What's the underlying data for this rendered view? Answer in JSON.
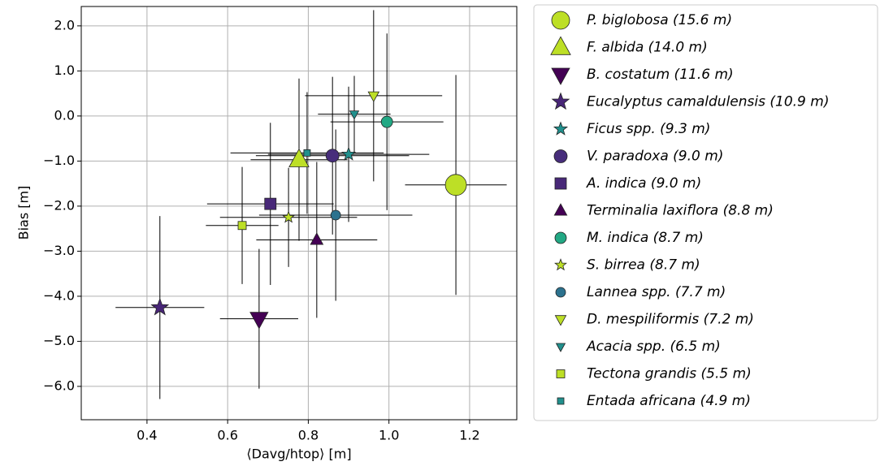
{
  "chart_data": {
    "type": "scatter",
    "xlabel": "⟨Davg/htop⟩ [m]",
    "ylabel": "Bias [m]",
    "xlim": [
      0.237,
      1.317
    ],
    "ylim": [
      -6.74,
      2.43
    ],
    "xticks": [
      0.4,
      0.6,
      0.8,
      {
        "value": 1,
        "label": "1.0"
      },
      1.2
    ],
    "yticks": [
      {
        "value": 2,
        "label": "2.0"
      },
      {
        "value": 1,
        "label": "1.0"
      },
      {
        "value": 0,
        "label": "0.0"
      },
      {
        "value": -1,
        "label": "−1.0"
      },
      {
        "value": -2,
        "label": "−2.0"
      },
      {
        "value": -3,
        "label": "−3.0"
      },
      {
        "value": -4,
        "label": "−4.0"
      },
      {
        "value": -5,
        "label": "−5.0"
      },
      {
        "value": -6,
        "label": "−6.0"
      }
    ],
    "grid": true,
    "legend": "outside right",
    "series": [
      {
        "name": "P. biglobosa (15.6 m)",
        "color": "#bddf26",
        "marker": "circle",
        "x": 1.166,
        "y": -1.53,
        "xerr": 0.126,
        "yerr": 2.44
      },
      {
        "name": "F. albida (14.0 m)",
        "color": "#bddf26",
        "marker": "triangle-up",
        "x": 0.777,
        "y": -0.97,
        "xerr": 0.12,
        "yerr": 1.8
      },
      {
        "name": "B. costatum (11.6 m)",
        "color": "#440154",
        "marker": "triangle-down",
        "x": 0.678,
        "y": -4.5,
        "xerr": 0.097,
        "yerr": 1.55
      },
      {
        "name": "Eucalyptus camaldulensis (10.9 m)",
        "color": "#482677",
        "marker": "star",
        "x": 0.432,
        "y": -4.25,
        "xerr": 0.11,
        "yerr": 2.03
      },
      {
        "name": "Ficus spp. (9.3 m)",
        "color": "#21908d",
        "marker": "star",
        "x": 0.9,
        "y": -0.85,
        "xerr": 0.2,
        "yerr": 1.5
      },
      {
        "name": "V. paradoxa (9.0 m)",
        "color": "#472d7b",
        "marker": "circle",
        "x": 0.86,
        "y": -0.88,
        "xerr": 0.19,
        "yerr": 1.75
      },
      {
        "name": "A. indica (9.0 m)",
        "color": "#482878",
        "marker": "square",
        "x": 0.706,
        "y": -1.95,
        "xerr": 0.157,
        "yerr": 1.8
      },
      {
        "name": "Terminalia laxiflora (8.8 m)",
        "color": "#440154",
        "marker": "triangle-up",
        "x": 0.821,
        "y": -2.75,
        "xerr": 0.15,
        "yerr": 1.73
      },
      {
        "name": "M. indica (8.7 m)",
        "color": "#22a884",
        "marker": "circle",
        "x": 0.995,
        "y": -0.13,
        "xerr": 0.14,
        "yerr": 1.96
      },
      {
        "name": "S. birrea (8.7 m)",
        "color": "#bddf26",
        "marker": "star",
        "x": 0.751,
        "y": -2.25,
        "xerr": 0.17,
        "yerr": 1.1
      },
      {
        "name": "Lannea spp. (7.7 m)",
        "color": "#2c728e",
        "marker": "circle",
        "x": 0.868,
        "y": -2.2,
        "xerr": 0.19,
        "yerr": 1.9
      },
      {
        "name": "D. mespiliformis (7.2 m)",
        "color": "#bddf26",
        "marker": "triangle-down",
        "x": 0.962,
        "y": 0.45,
        "xerr": 0.17,
        "yerr": 1.9
      },
      {
        "name": "Acacia spp. (6.5 m)",
        "color": "#21908d",
        "marker": "triangle-down",
        "x": 0.914,
        "y": 0.04,
        "xerr": 0.09,
        "yerr": 0.85
      },
      {
        "name": "Tectona grandis (5.5 m)",
        "color": "#bddf26",
        "marker": "square",
        "x": 0.636,
        "y": -2.43,
        "xerr": 0.09,
        "yerr": 1.3
      },
      {
        "name": "Entada africana (4.9 m)",
        "color": "#21908d",
        "marker": "square",
        "x": 0.797,
        "y": -0.82,
        "xerr": 0.19,
        "yerr": 1.35
      }
    ]
  }
}
